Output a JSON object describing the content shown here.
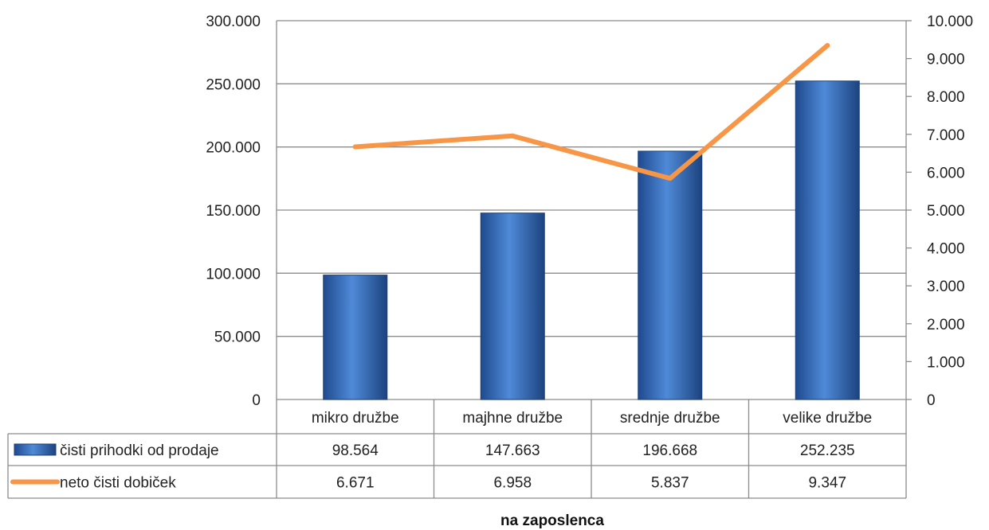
{
  "chart_data": {
    "type": "bar",
    "categories": [
      "mikro družbe",
      "majhne družbe",
      "srednje družbe",
      "velike družbe"
    ],
    "series": [
      {
        "name": "čisti prihodki od prodaje",
        "type": "bar",
        "axis": "left",
        "values": [
          98564,
          147663,
          196668,
          252235
        ],
        "labels": [
          "98.564",
          "147.663",
          "196.668",
          "252.235"
        ],
        "color": "#3b6fc4"
      },
      {
        "name": "neto čisti dobiček",
        "type": "line",
        "axis": "right",
        "values": [
          6671,
          6958,
          5837,
          9347
        ],
        "labels": [
          "6.671",
          "6.958",
          "5.837",
          "9.347"
        ],
        "color": "#f79646"
      }
    ],
    "y_left": {
      "lim": [
        0,
        300000
      ],
      "ticks": [
        0,
        50000,
        100000,
        150000,
        200000,
        250000,
        300000
      ],
      "tick_labels": [
        "0",
        "50.000",
        "100.000",
        "150.000",
        "200.000",
        "250.000",
        "300.000"
      ]
    },
    "y_right": {
      "lim": [
        0,
        10000
      ],
      "ticks": [
        0,
        1000,
        2000,
        3000,
        4000,
        5000,
        6000,
        7000,
        8000,
        9000,
        10000
      ],
      "tick_labels": [
        "0",
        "1.000",
        "2.000",
        "3.000",
        "4.000",
        "5.000",
        "6.000",
        "7.000",
        "8.000",
        "9.000",
        "10.000"
      ]
    },
    "xlabel": "na zaposlenca",
    "grid": true,
    "legend": "data-table"
  }
}
